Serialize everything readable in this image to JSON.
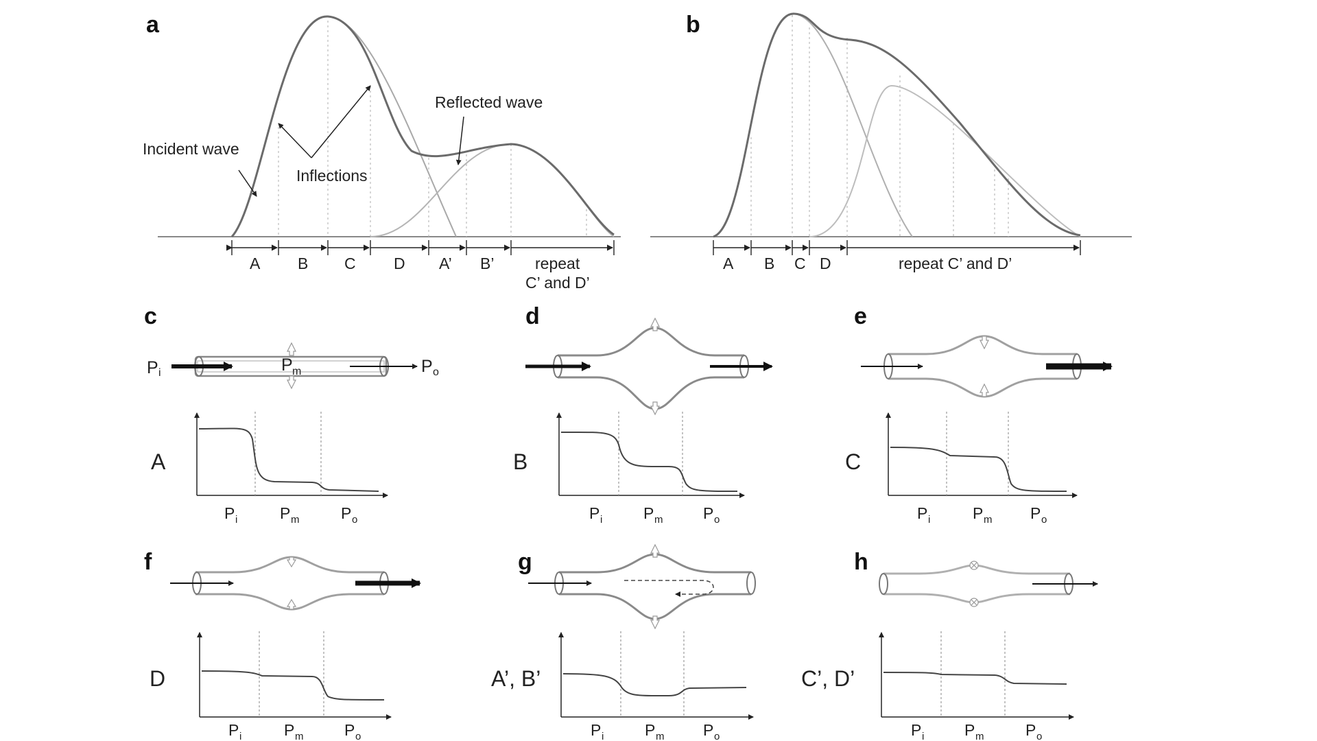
{
  "panels": {
    "a": {
      "letter": "a",
      "annotations": {
        "incident": "Incident wave",
        "inflections": "Inflections",
        "reflected": "Reflected wave"
      },
      "segments": [
        "A",
        "B",
        "C",
        "D",
        "A’",
        "B’",
        "repeat",
        "C’ and D’"
      ]
    },
    "b": {
      "letter": "b",
      "segments": [
        "A",
        "B",
        "C",
        "D",
        "repeat C’ and D’"
      ]
    },
    "c": {
      "letter": "c",
      "phase": "A",
      "tube_labels": {
        "inlet": "P",
        "inlet_sub": "i",
        "mid": "P",
        "mid_sub": "m",
        "outlet": "P",
        "outlet_sub": "o"
      }
    },
    "d": {
      "letter": "d",
      "phase": "B"
    },
    "e": {
      "letter": "e",
      "phase": "C"
    },
    "f": {
      "letter": "f",
      "phase": "D"
    },
    "g": {
      "letter": "g",
      "phase": "A’, B’"
    },
    "h": {
      "letter": "h",
      "phase": "C’, D’"
    }
  },
  "axis_labels": {
    "p": "P",
    "i": "i",
    "m": "m",
    "o": "o"
  },
  "colors": {
    "wave": "#6b6b6b",
    "component": "#a9a9a9",
    "light": "#c4c4c4",
    "dark": "#111111"
  }
}
